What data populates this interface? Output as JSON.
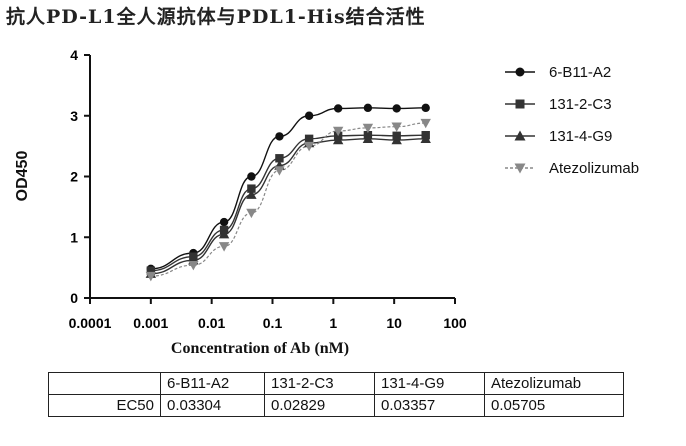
{
  "chart_data": {
    "type": "scatter",
    "title": "抗人PD-L1全人源抗体与PDL1-His结合活性",
    "xlabel": "Concentration of Ab (nM)",
    "ylabel": "OD450",
    "xscale": "log",
    "xlim": [
      0.0001,
      100
    ],
    "ylim": [
      0,
      4
    ],
    "x_ticks": [
      "0.0001",
      "0.001",
      "0.01",
      "0.1",
      "1",
      "10",
      "100"
    ],
    "y_ticks": [
      "0",
      "1",
      "2",
      "3",
      "4"
    ],
    "legend_position": "right",
    "x": [
      0.001,
      0.005,
      0.016,
      0.045,
      0.13,
      0.4,
      1.2,
      3.7,
      11,
      33
    ],
    "series": [
      {
        "name": "6-B11-A2",
        "marker": "circle",
        "color": "#111111",
        "values": [
          0.48,
          0.74,
          1.25,
          2.0,
          2.66,
          3.0,
          3.12,
          3.13,
          3.12,
          3.13
        ]
      },
      {
        "name": "131-2-C3",
        "marker": "square",
        "color": "#333333",
        "values": [
          0.45,
          0.68,
          1.12,
          1.8,
          2.3,
          2.62,
          2.67,
          2.68,
          2.67,
          2.68
        ]
      },
      {
        "name": "131-4-G9",
        "marker": "triangle",
        "color": "#333333",
        "values": [
          0.4,
          0.62,
          1.05,
          1.7,
          2.18,
          2.55,
          2.6,
          2.62,
          2.6,
          2.62
        ]
      },
      {
        "name": "Atezolizumab",
        "marker": "triangle-down",
        "color": "#888888",
        "values": [
          0.36,
          0.54,
          0.85,
          1.4,
          2.1,
          2.5,
          2.75,
          2.8,
          2.82,
          2.88
        ]
      }
    ],
    "table": {
      "headers": [
        "",
        "6-B11-A2",
        "131-2-C3",
        "131-4-G9",
        "Atezolizumab"
      ],
      "rows": [
        [
          "EC50",
          "0.03304",
          "0.02829",
          "0.03357",
          "0.05705"
        ]
      ]
    }
  }
}
